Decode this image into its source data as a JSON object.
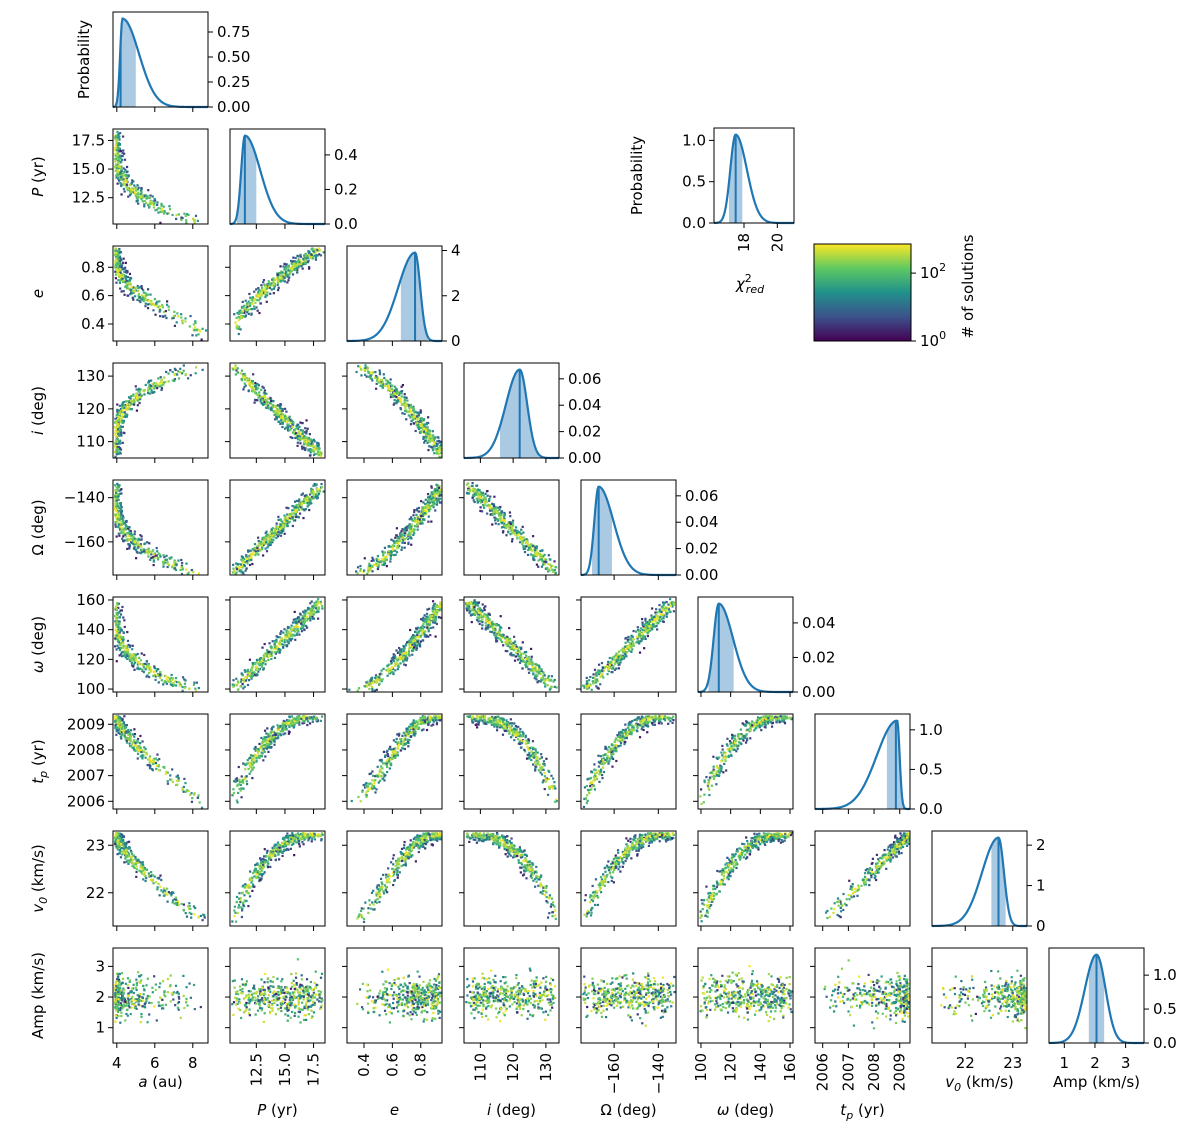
{
  "chart_data": {
    "type": "corner",
    "colors": {
      "line": "#1f77b4",
      "band": "#aac9e2"
    },
    "params": [
      {
        "key": "a",
        "label": "a (au)",
        "xticks": [
          4,
          6,
          8
        ],
        "xtick_labels": [
          "4",
          "6",
          "8"
        ],
        "yticks": [],
        "ytick_labels": [],
        "range": [
          3.8,
          8.8
        ],
        "peak": 4.3,
        "median": 4.2,
        "ci": [
          4.0,
          5.0
        ],
        "pmax_axis": 0.95,
        "diag_yticks": [
          0,
          0.25,
          0.5,
          0.75
        ],
        "diag_ytick_labels": [
          "0.00",
          "0.25",
          "0.50",
          "0.75"
        ]
      },
      {
        "key": "P",
        "label": "P (yr)",
        "xticks": [
          12.5,
          15.0,
          17.5
        ],
        "xtick_labels": [
          "12.5",
          "15.0",
          "17.5"
        ],
        "yticks": [
          12.5,
          15.0,
          17.5
        ],
        "ytick_labels": [
          "12.5",
          "15.0",
          "17.5"
        ],
        "range": [
          10.2,
          18.5
        ],
        "peak": 11.5,
        "median": 11.5,
        "ci": [
          10.8,
          12.5
        ],
        "pmax_axis": 0.55,
        "diag_yticks": [
          0,
          0.2,
          0.4
        ],
        "diag_ytick_labels": [
          "0.0",
          "0.2",
          "0.4"
        ]
      },
      {
        "key": "e",
        "label": "e",
        "xticks": [
          0.4,
          0.6,
          0.8
        ],
        "xtick_labels": [
          "0.4",
          "0.6",
          "0.8"
        ],
        "yticks": [
          0.4,
          0.6,
          0.8
        ],
        "ytick_labels": [
          "0.4",
          "0.6",
          "0.8"
        ],
        "range": [
          0.28,
          0.95
        ],
        "peak": 0.76,
        "median": 0.76,
        "ci": [
          0.66,
          0.85
        ],
        "pmax_axis": 4.2,
        "diag_yticks": [
          0,
          2,
          4
        ],
        "diag_ytick_labels": [
          "0",
          "2",
          "4"
        ]
      },
      {
        "key": "i",
        "label": "i (deg)",
        "xticks": [
          110,
          120,
          130
        ],
        "xtick_labels": [
          "110",
          "120",
          "130"
        ],
        "yticks": [
          110,
          120,
          130
        ],
        "ytick_labels": [
          "110",
          "120",
          "130"
        ],
        "range": [
          105,
          134
        ],
        "peak": 122,
        "median": 122,
        "ci": [
          116,
          128
        ],
        "pmax_axis": 0.072,
        "diag_yticks": [
          0,
          0.02,
          0.04,
          0.06
        ],
        "diag_ytick_labels": [
          "0.00",
          "0.02",
          "0.04",
          "0.06"
        ]
      },
      {
        "key": "Omega",
        "label": "Ω (deg)",
        "xticks": [
          -160,
          -140
        ],
        "xtick_labels": [
          "−160",
          "−140"
        ],
        "yticks": [
          -160,
          -140
        ],
        "ytick_labels": [
          "−160",
          "−140"
        ],
        "range": [
          -175,
          -132
        ],
        "peak": -167,
        "median": -167,
        "ci": [
          -170,
          -161
        ],
        "pmax_axis": 0.072,
        "diag_yticks": [
          0,
          0.02,
          0.04,
          0.06
        ],
        "diag_ytick_labels": [
          "0.00",
          "0.02",
          "0.04",
          "0.06"
        ]
      },
      {
        "key": "omega",
        "label": "ω (deg)",
        "xticks": [
          100,
          120,
          140,
          160
        ],
        "xtick_labels": [
          "100",
          "120",
          "140",
          "160"
        ],
        "yticks": [
          100,
          120,
          140,
          160
        ],
        "ytick_labels": [
          "100",
          "120",
          "140",
          "160"
        ],
        "range": [
          98,
          162
        ],
        "peak": 112,
        "median": 112,
        "ci": [
          105,
          122
        ],
        "pmax_axis": 0.055,
        "diag_yticks": [
          0,
          0.02,
          0.04
        ],
        "diag_ytick_labels": [
          "0.00",
          "0.02",
          "0.04"
        ]
      },
      {
        "key": "tp",
        "label": "t_p (yr)",
        "xticks": [
          2006,
          2007,
          2008,
          2009
        ],
        "xtick_labels": [
          "2006",
          "2007",
          "2008",
          "2009"
        ],
        "yticks": [
          2006,
          2007,
          2008,
          2009
        ],
        "ytick_labels": [
          "2006",
          "2007",
          "2008",
          "2009"
        ],
        "range": [
          2005.7,
          2009.4
        ],
        "peak": 2008.9,
        "median": 2008.85,
        "ci": [
          2008.5,
          2009.15
        ],
        "pmax_axis": 1.2,
        "diag_yticks": [
          0,
          0.5,
          1.0
        ],
        "diag_ytick_labels": [
          "0.0",
          "0.5",
          "1.0"
        ]
      },
      {
        "key": "v0",
        "label": "v_0 (km/s)",
        "xticks": [
          22,
          23
        ],
        "xtick_labels": [
          "22",
          "23"
        ],
        "yticks": [
          22,
          23
        ],
        "ytick_labels": [
          "22",
          "23"
        ],
        "range": [
          21.3,
          23.3
        ],
        "peak": 22.7,
        "median": 22.7,
        "ci": [
          22.55,
          22.85
        ],
        "pmax_axis": 2.35,
        "diag_yticks": [
          0,
          1,
          2
        ],
        "diag_ytick_labels": [
          "0",
          "1",
          "2"
        ]
      },
      {
        "key": "Amp",
        "label": "Amp (km/s)",
        "xticks": [
          1,
          2,
          3
        ],
        "xtick_labels": [
          "1",
          "2",
          "3"
        ],
        "yticks": [
          1,
          2,
          3
        ],
        "ytick_labels": [
          "1",
          "2",
          "3"
        ],
        "range": [
          0.5,
          3.6
        ],
        "peak": 2.05,
        "median": 2.05,
        "ci": [
          1.8,
          2.3
        ],
        "pmax_axis": 1.4,
        "diag_yticks": [
          0,
          0.5,
          1.0
        ],
        "diag_ytick_labels": [
          "0.0",
          "0.5",
          "1.0"
        ]
      }
    ],
    "diag_ylabel": "Probability",
    "chi2_panel": {
      "xlabel": "χ²_red",
      "ylabel": "Probability",
      "xticks": [
        18,
        20
      ],
      "xtick_labels": [
        "18",
        "20"
      ],
      "yticks": [
        0,
        0.5,
        1.0
      ],
      "ytick_labels": [
        "0.0",
        "0.5",
        "1.0"
      ],
      "range": [
        16.2,
        21.0
      ],
      "pmax_axis": 1.15,
      "peak": 17.5,
      "median": 17.5,
      "ci": [
        17.1,
        17.9
      ]
    },
    "colorbar": {
      "label": "# of solutions",
      "scale": "log",
      "ticks": [
        "10^0",
        "10^2"
      ],
      "colormap": "viridis",
      "colors": [
        "#440154",
        "#3b528b",
        "#21918c",
        "#5ec962",
        "#fde725"
      ]
    }
  }
}
